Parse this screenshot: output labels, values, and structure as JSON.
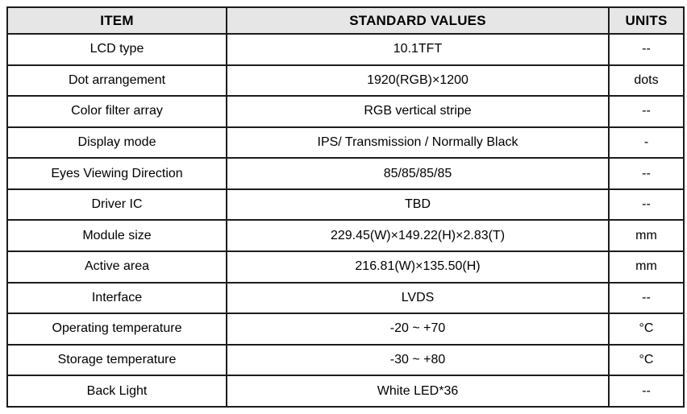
{
  "table": {
    "headers": {
      "item": "ITEM",
      "value": "STANDARD VALUES",
      "unit": "UNITS"
    },
    "rows": [
      {
        "item": "LCD type",
        "value": "10.1TFT",
        "unit": "--"
      },
      {
        "item": "Dot arrangement",
        "value": "1920(RGB)×1200",
        "unit": "dots"
      },
      {
        "item": "Color filter array",
        "value": "RGB vertical stripe",
        "unit": "--"
      },
      {
        "item": "Display mode",
        "value": "IPS/ Transmission / Normally Black",
        "unit": "-"
      },
      {
        "item": "Eyes Viewing Direction",
        "value": "85/85/85/85",
        "unit": "--"
      },
      {
        "item": "Driver IC",
        "value": "TBD",
        "unit": "--"
      },
      {
        "item": "Module size",
        "value": "229.45(W)×149.22(H)×2.83(T)",
        "unit": "mm"
      },
      {
        "item": "Active area",
        "value": "216.81(W)×135.50(H)",
        "unit": "mm"
      },
      {
        "item": "Interface",
        "value": "LVDS",
        "unit": "--"
      },
      {
        "item": "Operating temperature",
        "value": "-20 ~ +70",
        "unit": "°C"
      },
      {
        "item": "Storage temperature",
        "value": "-30 ~ +80",
        "unit": "°C"
      },
      {
        "item": "Back Light",
        "value": "White LED*36",
        "unit": "--"
      }
    ],
    "colors": {
      "header_bg": "#e6e6e6",
      "border": "#1c1c1c",
      "text": "#000000",
      "background": "#ffffff"
    }
  }
}
